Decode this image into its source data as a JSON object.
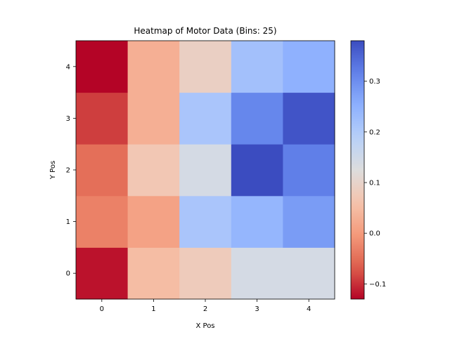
{
  "chart_data": {
    "type": "heatmap",
    "title": "Heatmap of Motor Data (Bins: 25)",
    "xlabel": "X Pos",
    "ylabel": "Y Pos",
    "x_ticks": [
      "0",
      "1",
      "2",
      "3",
      "4"
    ],
    "y_ticks": [
      "0",
      "1",
      "2",
      "3",
      "4"
    ],
    "colormap": "coolwarm_r",
    "vmin": -0.13,
    "vmax": 0.38,
    "values": [
      [
        -0.12,
        0.05,
        0.08,
        0.14,
        0.14
      ],
      [
        -0.03,
        0.01,
        0.21,
        0.24,
        0.28
      ],
      [
        -0.05,
        0.07,
        0.14,
        0.38,
        0.32
      ],
      [
        -0.09,
        0.03,
        0.21,
        0.31,
        0.37
      ],
      [
        -0.13,
        0.03,
        0.09,
        0.22,
        0.25
      ]
    ],
    "colorbar": {
      "ticks": [
        -0.1,
        0.0,
        0.1,
        0.2,
        0.3
      ],
      "tick_labels": [
        "−0.1",
        "0.0",
        "0.1",
        "0.2",
        "0.3"
      ]
    }
  }
}
